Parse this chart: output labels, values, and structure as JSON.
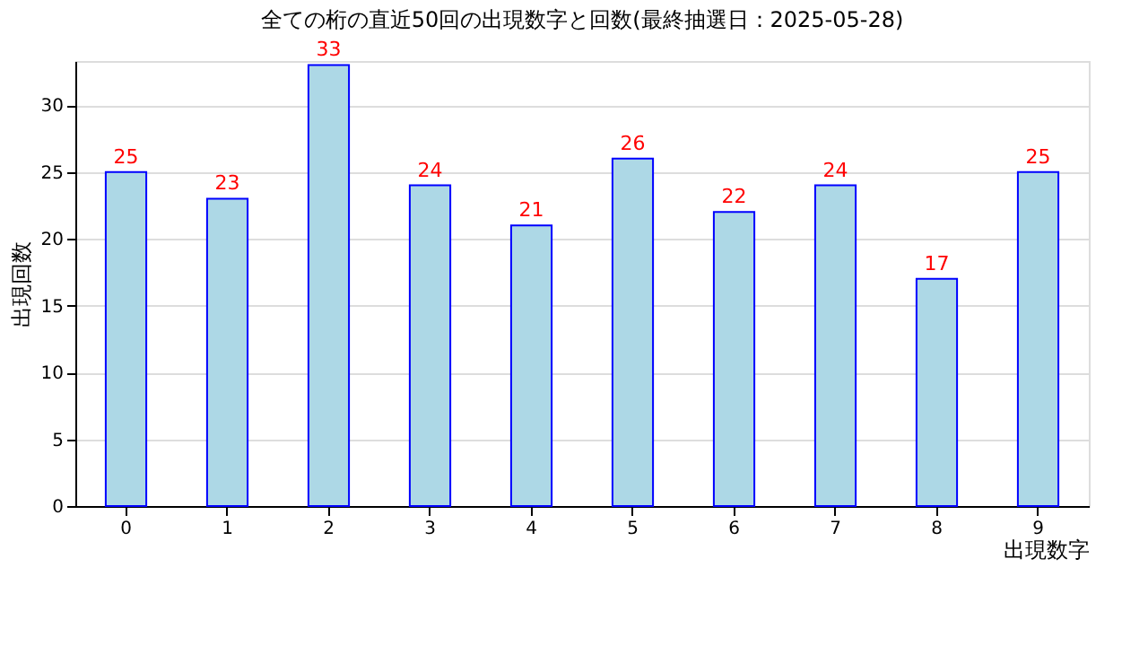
{
  "chart_data": {
    "type": "bar",
    "title": "全ての桁の直近50回の出現数字と回数(最終抽選日：2025-05-28)",
    "xlabel": "出現数字",
    "ylabel": "出現回数",
    "categories": [
      "0",
      "1",
      "2",
      "3",
      "4",
      "5",
      "6",
      "7",
      "8",
      "9"
    ],
    "values": [
      25,
      23,
      33,
      24,
      21,
      26,
      22,
      24,
      17,
      25
    ],
    "color": "#add8e6",
    "ylim": [
      0,
      33.3
    ],
    "yticks": [
      0,
      5,
      10,
      15,
      20,
      25,
      30
    ],
    "grid": "y",
    "data_labels": true
  }
}
